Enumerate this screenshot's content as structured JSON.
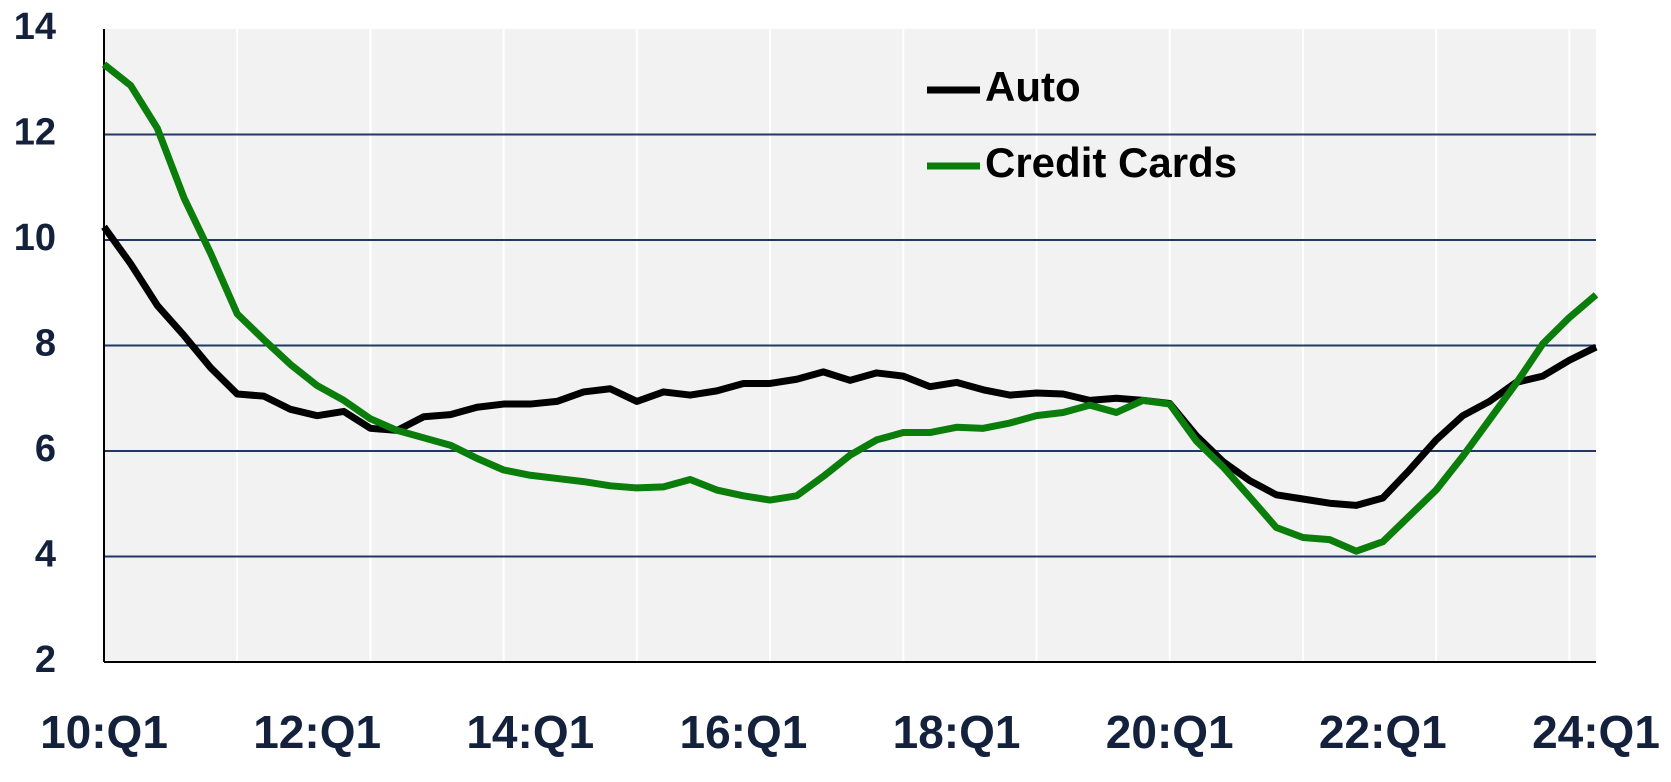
{
  "chart_data": {
    "type": "line",
    "categories": [
      "10:Q1",
      null,
      null,
      null,
      null,
      null,
      null,
      null,
      "12:Q1",
      null,
      null,
      null,
      null,
      null,
      null,
      null,
      "14:Q1",
      null,
      null,
      null,
      null,
      null,
      null,
      null,
      "16:Q1",
      null,
      null,
      null,
      null,
      null,
      null,
      null,
      "18:Q1",
      null,
      null,
      null,
      null,
      null,
      null,
      null,
      "20:Q1",
      null,
      null,
      null,
      null,
      null,
      null,
      null,
      "22:Q1",
      null,
      null,
      null,
      null,
      null,
      null,
      null,
      "24:Q1"
    ],
    "series": [
      {
        "name": "Auto",
        "color": "#000000",
        "values": [
          10.25,
          9.55,
          8.76,
          8.19,
          7.58,
          7.08,
          7.04,
          6.79,
          6.67,
          6.75,
          6.43,
          6.39,
          6.65,
          6.69,
          6.83,
          6.89,
          6.89,
          6.94,
          7.12,
          7.18,
          6.94,
          7.12,
          7.06,
          7.14,
          7.28,
          7.28,
          7.36,
          7.5,
          7.34,
          7.48,
          7.42,
          7.22,
          7.3,
          7.16,
          7.06,
          7.1,
          7.08,
          6.96,
          7.0,
          6.96,
          6.9,
          6.29,
          5.8,
          5.44,
          5.17,
          5.09,
          5.01,
          4.97,
          5.11,
          5.64,
          6.21,
          6.67,
          6.94,
          7.3,
          7.42,
          7.72,
          7.97
        ]
      },
      {
        "name": "Credit Cards",
        "color": "#0a7d0a",
        "values": [
          13.33,
          12.93,
          12.12,
          10.8,
          9.75,
          8.6,
          8.11,
          7.64,
          7.24,
          6.96,
          6.61,
          6.39,
          6.25,
          6.11,
          5.86,
          5.64,
          5.54,
          5.48,
          5.42,
          5.34,
          5.3,
          5.32,
          5.46,
          5.26,
          5.15,
          5.07,
          5.15,
          5.52,
          5.92,
          6.21,
          6.35,
          6.35,
          6.45,
          6.43,
          6.53,
          6.67,
          6.73,
          6.87,
          6.73,
          6.96,
          6.89,
          6.19,
          5.7,
          5.13,
          4.55,
          4.36,
          4.32,
          4.1,
          4.28,
          4.77,
          5.26,
          5.9,
          6.59,
          7.28,
          8.03,
          8.53,
          8.96
        ]
      }
    ],
    "ylim": [
      2,
      14
    ],
    "yticks": [
      2,
      4,
      6,
      8,
      10,
      12,
      14
    ],
    "grid": true,
    "legend": "top"
  }
}
